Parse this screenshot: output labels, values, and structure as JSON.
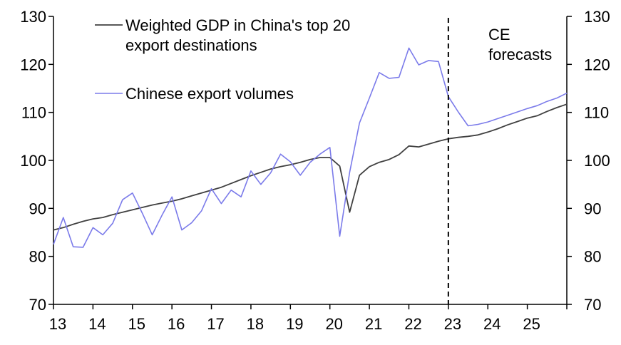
{
  "chart_data": {
    "type": "line",
    "title": "",
    "xlabel": "",
    "ylabel": "",
    "ylim": [
      70,
      130
    ],
    "xlim": [
      2013.0,
      2026.0
    ],
    "grid": false,
    "legend_placement": "top-left",
    "x_tick_labels": [
      "13",
      "14",
      "15",
      "16",
      "17",
      "18",
      "19",
      "20",
      "21",
      "22",
      "23",
      "24",
      "25"
    ],
    "y_tick_labels_left": [
      "70",
      "80",
      "90",
      "100",
      "110",
      "120",
      "130"
    ],
    "y_tick_labels_right": [
      "70",
      "80",
      "90",
      "100",
      "110",
      "120",
      "130"
    ],
    "forecast_start": 2023.0,
    "annotation": [
      "CE",
      "forecasts"
    ],
    "colors": {
      "gdp": "#404040",
      "exports": "#7b7bea",
      "axis": "#000000"
    },
    "series": [
      {
        "name": "Weighted GDP in China's top 20 export destinations",
        "color": "#404040",
        "x": [
          2013.0,
          2013.25,
          2013.5,
          2013.75,
          2014.0,
          2014.25,
          2014.5,
          2014.75,
          2015.0,
          2015.25,
          2015.5,
          2015.75,
          2016.0,
          2016.25,
          2016.5,
          2016.75,
          2017.0,
          2017.25,
          2017.5,
          2017.75,
          2018.0,
          2018.25,
          2018.5,
          2018.75,
          2019.0,
          2019.25,
          2019.5,
          2019.75,
          2020.0,
          2020.25,
          2020.5,
          2020.75,
          2021.0,
          2021.25,
          2021.5,
          2021.75,
          2022.0,
          2022.25,
          2022.5,
          2022.75,
          2023.0,
          2023.25,
          2023.5,
          2023.75,
          2024.0,
          2024.25,
          2024.5,
          2024.75,
          2025.0,
          2025.25,
          2025.5,
          2025.75,
          2026.0
        ],
        "values": [
          85.5,
          86.0,
          86.7,
          87.3,
          87.8,
          88.1,
          88.7,
          89.2,
          89.7,
          90.2,
          90.7,
          91.1,
          91.5,
          92.0,
          92.6,
          93.2,
          93.8,
          94.4,
          95.2,
          96.0,
          96.8,
          97.5,
          98.2,
          98.7,
          99.1,
          99.6,
          100.2,
          100.6,
          100.6,
          98.8,
          89.2,
          96.9,
          98.7,
          99.6,
          100.2,
          101.2,
          103.0,
          102.8,
          103.4,
          104.0,
          104.5,
          104.8,
          105.0,
          105.3,
          105.9,
          106.6,
          107.4,
          108.1,
          108.8,
          109.3,
          110.2,
          111.0,
          111.7
        ]
      },
      {
        "name": "Chinese export volumes",
        "color": "#7b7bea",
        "x": [
          2013.0,
          2013.25,
          2013.5,
          2013.75,
          2014.0,
          2014.25,
          2014.5,
          2014.75,
          2015.0,
          2015.25,
          2015.5,
          2015.75,
          2016.0,
          2016.25,
          2016.5,
          2016.75,
          2017.0,
          2017.25,
          2017.5,
          2017.75,
          2018.0,
          2018.25,
          2018.5,
          2018.75,
          2019.0,
          2019.25,
          2019.5,
          2019.75,
          2020.0,
          2020.25,
          2020.5,
          2020.75,
          2021.0,
          2021.25,
          2021.5,
          2021.75,
          2022.0,
          2022.25,
          2022.5,
          2022.75,
          2023.0,
          2023.25,
          2023.5,
          2023.75,
          2024.0,
          2024.25,
          2024.5,
          2024.75,
          2025.0,
          2025.25,
          2025.5,
          2025.75,
          2026.0
        ],
        "values": [
          82.5,
          88.1,
          82.0,
          81.9,
          86.0,
          84.5,
          86.9,
          91.8,
          93.2,
          89.0,
          84.5,
          88.6,
          92.4,
          85.5,
          87.0,
          89.5,
          94.1,
          91.0,
          93.8,
          92.4,
          97.8,
          95.0,
          97.4,
          101.3,
          99.7,
          96.9,
          99.6,
          101.3,
          102.7,
          84.2,
          97.5,
          107.8,
          113.0,
          118.3,
          117.1,
          117.3,
          123.4,
          119.9,
          120.8,
          120.6,
          113.3,
          110.1,
          107.2,
          107.5,
          108.0,
          108.7,
          109.4,
          110.1,
          110.8,
          111.4,
          112.3,
          113.0,
          114.0
        ]
      }
    ]
  }
}
